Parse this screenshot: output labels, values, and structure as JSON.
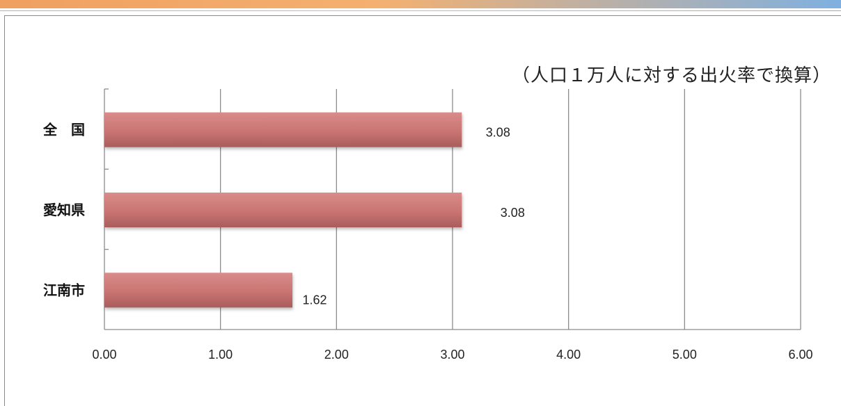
{
  "note": "（人口１万人に対する出火率で換算）",
  "chart_data": {
    "type": "bar",
    "orientation": "horizontal",
    "categories": [
      "全　国",
      "愛知県",
      "江南市"
    ],
    "values": [
      3.08,
      3.08,
      1.62
    ],
    "value_labels": [
      "3.08",
      "3.08",
      "1.62"
    ],
    "x_ticks": [
      "0.00",
      "1.00",
      "2.00",
      "3.00",
      "4.00",
      "5.00",
      "6.00"
    ],
    "xlim": [
      0,
      6
    ],
    "grid": "vertical",
    "bar_color": "#c97474"
  }
}
